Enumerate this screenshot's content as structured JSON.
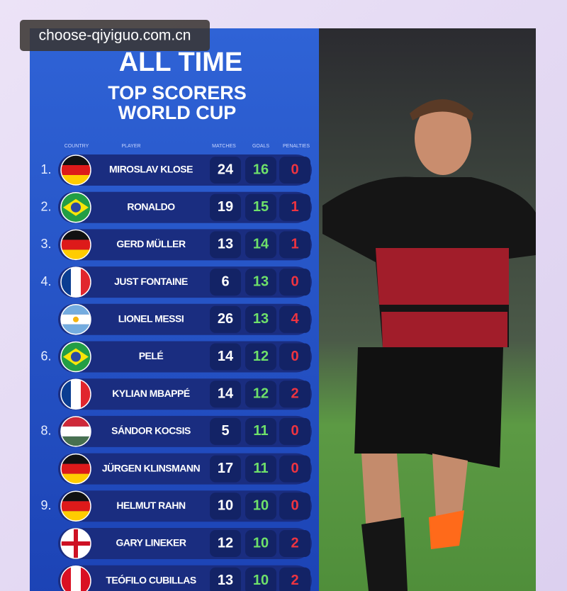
{
  "watermark": "choose-qiyiguo.com.cn",
  "header": {
    "title": "ALL TIME",
    "subtitle_lines": [
      "TOP SCORERS",
      "WORLD CUP"
    ]
  },
  "table": {
    "columns": [
      "COUNTRY",
      "PLAYER",
      "MATCHES",
      "GOALS",
      "PENALTIES"
    ],
    "rows": [
      [
        "1.",
        "MIROSLAV KLOSE",
        24,
        16,
        0
      ],
      [
        "2.",
        "RONALDO",
        19,
        15,
        1
      ],
      [
        "3.",
        "GERD MÜLLER",
        13,
        14,
        1
      ],
      [
        "4.",
        "JUST FONTAINE",
        6,
        13,
        0
      ],
      [
        null,
        "LIONEL MESSI",
        26,
        13,
        4
      ],
      [
        "6.",
        "PELÉ",
        14,
        12,
        0
      ],
      [
        null,
        "KYLIAN MBAPPÉ",
        14,
        12,
        2
      ],
      [
        "8.",
        "SÁNDOR KOCSIS",
        5,
        11,
        0
      ],
      [
        null,
        "JÜRGEN KLINSMANN",
        17,
        11,
        0
      ],
      [
        "9.",
        "HELMUT RAHN",
        10,
        10,
        0
      ],
      [
        null,
        "GARY LINEKER",
        12,
        10,
        2
      ],
      [
        null,
        "TEÓFILO CUBILLAS",
        13,
        10,
        2
      ]
    ]
  }
}
